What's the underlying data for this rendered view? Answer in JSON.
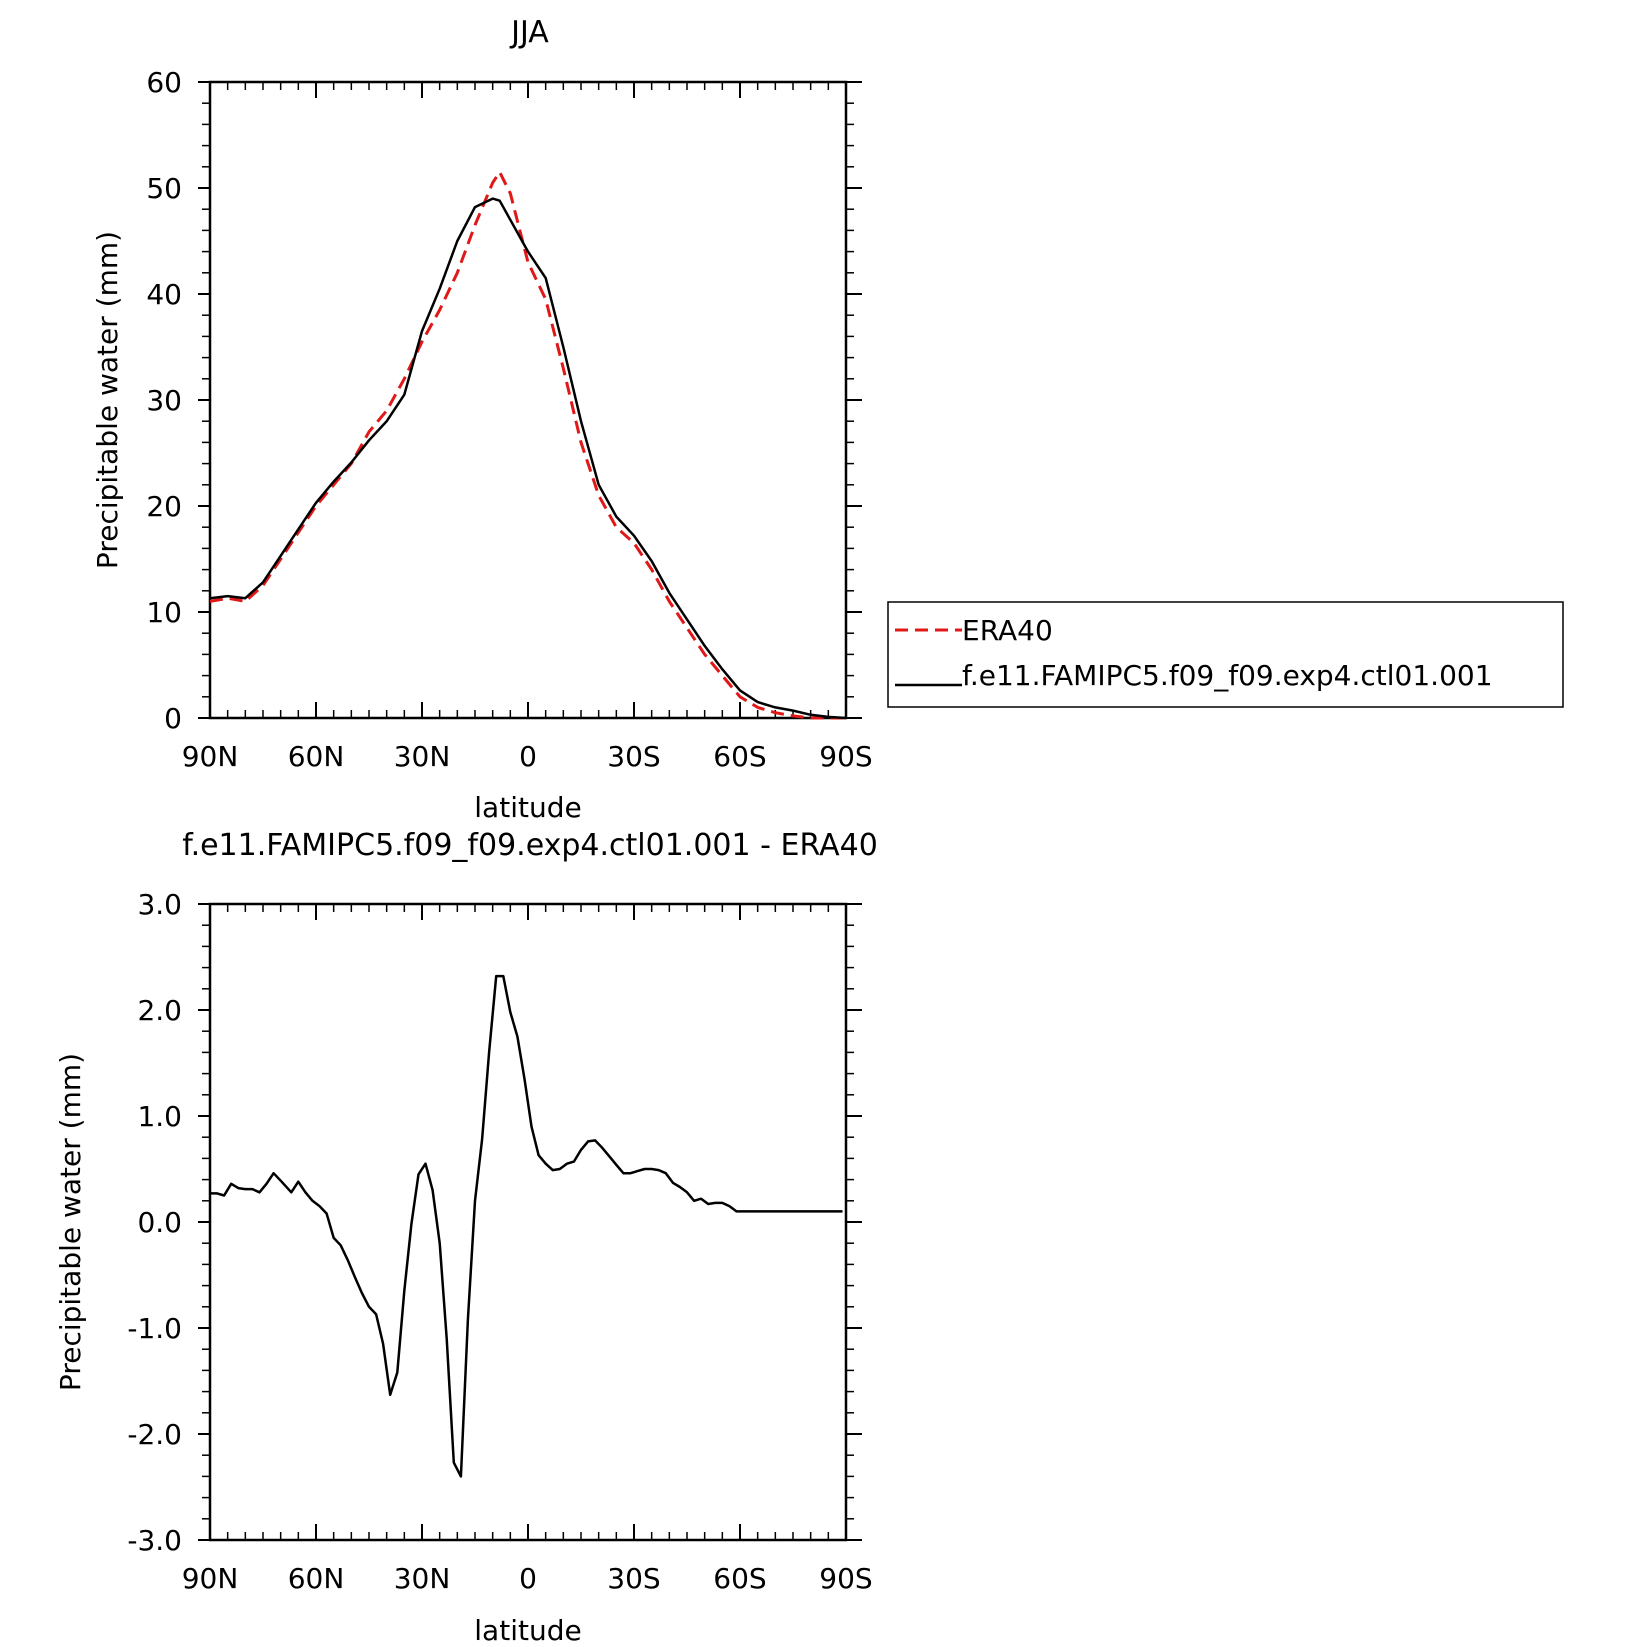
{
  "colors": {
    "era40": "#e01818",
    "model": "#000000",
    "axis": "#000000"
  },
  "chart_data": [
    {
      "type": "line",
      "title": "JJA",
      "xlabel": "latitude",
      "ylabel": "Precipitable water (mm)",
      "xlim": [
        90,
        -90
      ],
      "ylim": [
        0,
        60
      ],
      "xticks": [
        90,
        60,
        30,
        0,
        -30,
        -60,
        -90
      ],
      "xtick_labels": [
        "90N",
        "60N",
        "30N",
        "0",
        "30S",
        "60S",
        "90S"
      ],
      "yticks": [
        0,
        10,
        20,
        30,
        40,
        50,
        60
      ],
      "ytick_labels": [
        "0",
        "10",
        "20",
        "30",
        "40",
        "50",
        "60"
      ],
      "legend_position": "right",
      "series": [
        {
          "name": "ERA40",
          "style": "dashed",
          "color": "#e01818",
          "x": [
            90,
            85,
            80,
            75,
            70,
            65,
            60,
            55,
            50,
            45,
            40,
            35,
            30,
            25,
            20,
            15,
            10,
            8,
            5,
            0,
            -5,
            -10,
            -15,
            -20,
            -25,
            -30,
            -35,
            -40,
            -45,
            -50,
            -55,
            -60,
            -65,
            -70,
            -75,
            -80,
            -85,
            -90
          ],
          "y": [
            11,
            11.3,
            11,
            12.5,
            15,
            17.5,
            20,
            22,
            24,
            27,
            29,
            32,
            35.5,
            38.5,
            42,
            46.5,
            50.5,
            51.5,
            49.5,
            43,
            39.5,
            33,
            26,
            21,
            18,
            16.5,
            14,
            11,
            8.5,
            6,
            4,
            2,
            1,
            0.5,
            0.2,
            0,
            0,
            0
          ]
        },
        {
          "name": "f.e11.FAMIPC5.f09_f09.exp4.ctl01.001",
          "style": "solid",
          "color": "#000000",
          "x": [
            90,
            85,
            80,
            75,
            70,
            65,
            60,
            55,
            50,
            45,
            40,
            35,
            30,
            25,
            20,
            15,
            10,
            8,
            5,
            0,
            -5,
            -10,
            -15,
            -20,
            -25,
            -30,
            -35,
            -40,
            -45,
            -50,
            -55,
            -60,
            -65,
            -70,
            -75,
            -80,
            -85,
            -90
          ],
          "y": [
            11.3,
            11.5,
            11.3,
            12.8,
            15.3,
            17.8,
            20.3,
            22.3,
            24.1,
            26.2,
            28,
            30.5,
            36.5,
            40.5,
            45,
            48.2,
            49,
            48.8,
            47,
            44,
            41.5,
            35,
            28,
            22,
            19,
            17.2,
            14.8,
            11.8,
            9.3,
            6.8,
            4.6,
            2.6,
            1.5,
            1,
            0.7,
            0.3,
            0.1,
            0
          ]
        }
      ]
    },
    {
      "type": "line",
      "title": "f.e11.FAMIPC5.f09_f09.exp4.ctl01.001 - ERA40",
      "xlabel": "latitude",
      "ylabel": "Precipitable water (mm)",
      "xlim": [
        90,
        -90
      ],
      "ylim": [
        -3,
        3
      ],
      "xticks": [
        90,
        60,
        30,
        0,
        -30,
        -60,
        -90
      ],
      "xtick_labels": [
        "90N",
        "60N",
        "30N",
        "0",
        "30S",
        "60S",
        "90S"
      ],
      "yticks": [
        -3,
        -2,
        -1,
        0,
        1,
        2,
        3
      ],
      "ytick_labels": [
        "-3.0",
        "-2.0",
        "-1.0",
        "0.0",
        "1.0",
        "2.0",
        "3.0"
      ],
      "series": [
        {
          "style": "solid",
          "color": "#000000",
          "x": [
            90,
            88,
            86,
            84,
            82,
            80,
            78,
            76,
            74,
            72,
            70,
            67,
            65,
            63,
            61,
            59,
            57,
            55,
            53,
            51,
            49,
            47,
            45,
            43,
            41,
            39,
            37,
            35,
            33,
            31,
            29,
            27,
            25,
            23,
            21,
            19,
            17,
            15,
            13,
            11,
            9,
            7,
            5,
            3,
            1,
            -1,
            -3,
            -5,
            -7,
            -9,
            -11,
            -13,
            -15,
            -17,
            -19,
            -21,
            -23,
            -25,
            -27,
            -29,
            -31,
            -33,
            -35,
            -37,
            -39,
            -41,
            -43,
            -45,
            -47,
            -49,
            -51,
            -53,
            -55,
            -57,
            -59,
            -61,
            -63,
            -65,
            -67,
            -69,
            -71,
            -73,
            -75,
            -77,
            -79,
            -81,
            -83,
            -85,
            -87,
            -89
          ],
          "y": [
            0.27,
            0.27,
            0.25,
            0.36,
            0.32,
            0.31,
            0.31,
            0.28,
            0.36,
            0.46,
            0.39,
            0.28,
            0.38,
            0.28,
            0.2,
            0.15,
            0.08,
            -0.15,
            -0.22,
            -0.36,
            -0.52,
            -0.67,
            -0.8,
            -0.87,
            -1.15,
            -1.63,
            -1.42,
            -0.65,
            -0.02,
            0.45,
            0.55,
            0.3,
            -0.2,
            -1.1,
            -2.27,
            -2.4,
            -0.92,
            0.2,
            0.78,
            1.6,
            2.32,
            2.32,
            1.98,
            1.75,
            1.35,
            0.9,
            0.63,
            0.55,
            0.49,
            0.5,
            0.55,
            0.57,
            0.68,
            0.76,
            0.77,
            0.7,
            0.62,
            0.54,
            0.46,
            0.46,
            0.48,
            0.5,
            0.5,
            0.49,
            0.46,
            0.37,
            0.33,
            0.28,
            0.2,
            0.22,
            0.17,
            0.18,
            0.18,
            0.15,
            0.1,
            0.1,
            0.1,
            0.1,
            0.1,
            0.1,
            0.1,
            0.1,
            0.1,
            0.1,
            0.1,
            0.1,
            0.1,
            0.1,
            0.1,
            0.1
          ]
        }
      ]
    }
  ]
}
